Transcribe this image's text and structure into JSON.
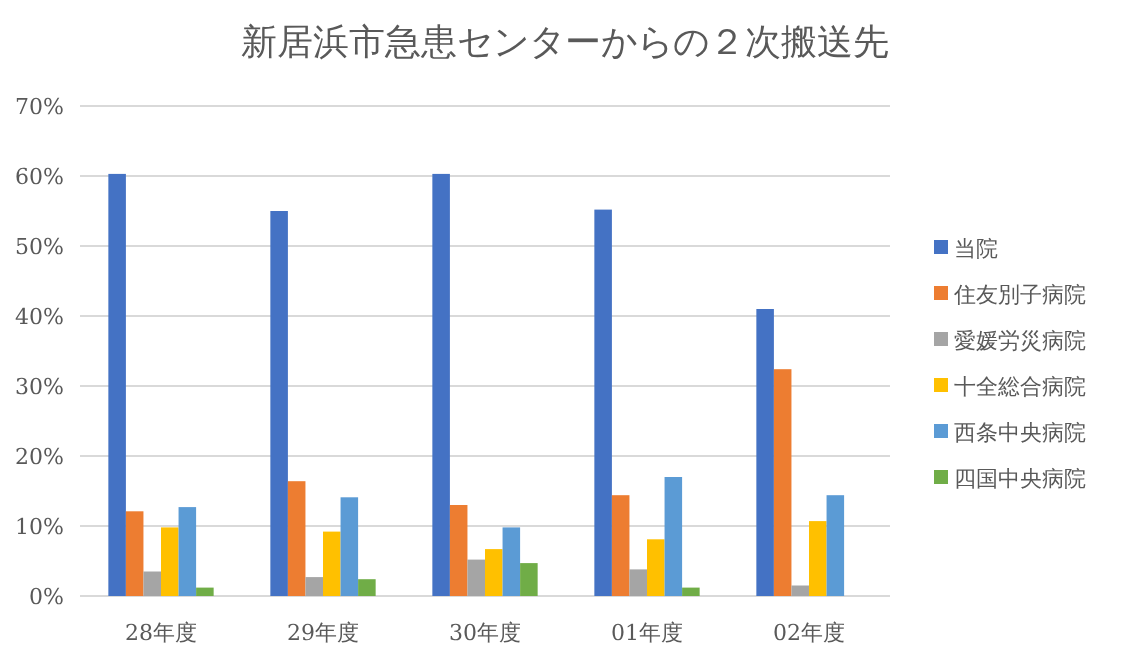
{
  "chart_data": {
    "type": "bar",
    "title": "新居浜市急患センターからの２次搬送先",
    "categories": [
      "28年度",
      "29年度",
      "30年度",
      "01年度",
      "02年度"
    ],
    "series": [
      {
        "name": "当院",
        "color": "#4472c4",
        "values": [
          60.3,
          55.0,
          60.3,
          55.2,
          41.0
        ]
      },
      {
        "name": "住友別子病院",
        "color": "#ed7d31",
        "values": [
          12.1,
          16.4,
          13.0,
          14.4,
          32.4
        ]
      },
      {
        "name": "愛媛労災病院",
        "color": "#a5a5a5",
        "values": [
          3.5,
          2.7,
          5.2,
          3.8,
          1.5
        ]
      },
      {
        "name": "十全総合病院",
        "color": "#ffc000",
        "values": [
          9.8,
          9.2,
          6.7,
          8.1,
          10.7
        ]
      },
      {
        "name": "西条中央病院",
        "color": "#5b9bd5",
        "values": [
          12.7,
          14.1,
          9.8,
          17.0,
          14.4
        ]
      },
      {
        "name": "四国中央病院",
        "color": "#70ad47",
        "values": [
          1.2,
          2.4,
          4.7,
          1.2,
          null
        ]
      }
    ],
    "ylim": [
      0,
      70
    ],
    "yticks": [
      {
        "value": 0,
        "label": "0%"
      },
      {
        "value": 10,
        "label": "10%"
      },
      {
        "value": 20,
        "label": "20%"
      },
      {
        "value": 30,
        "label": "30%"
      },
      {
        "value": 40,
        "label": "40%"
      },
      {
        "value": 50,
        "label": "50%"
      },
      {
        "value": 60,
        "label": "60%"
      },
      {
        "value": 70,
        "label": "70%"
      }
    ],
    "grid": "y",
    "legend": "right"
  }
}
